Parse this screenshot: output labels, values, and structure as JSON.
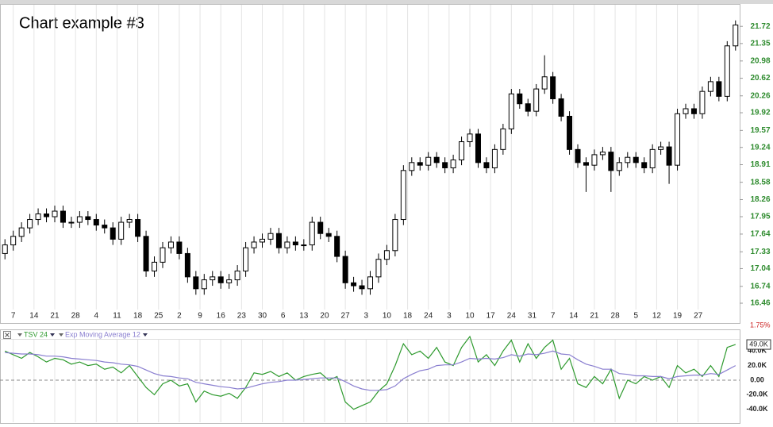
{
  "chart_data": [
    {
      "type": "candlestick",
      "title": "Chart example #3",
      "change_label": "1.75%",
      "x": [
        0,
        2,
        4,
        6,
        8,
        10,
        12,
        14,
        16,
        18,
        20,
        22,
        24,
        26,
        28,
        30,
        32,
        34,
        36,
        38,
        40,
        42,
        44,
        46,
        48,
        50,
        52,
        54,
        56,
        58,
        60,
        62,
        64,
        66,
        68,
        70,
        72,
        74,
        76,
        78,
        80,
        82,
        84,
        86,
        88,
        90,
        92,
        94,
        96,
        98,
        100,
        102,
        104,
        106,
        108,
        110,
        112,
        114,
        116,
        118,
        120,
        122,
        124,
        126,
        128,
        130,
        132,
        134,
        136,
        138,
        140,
        142,
        144,
        146,
        148,
        150,
        152,
        154,
        156,
        158,
        160,
        162,
        164,
        166,
        168,
        170,
        172,
        174,
        176
      ],
      "open": [
        17.3,
        17.45,
        17.6,
        17.75,
        17.9,
        18.0,
        17.95,
        18.05,
        17.85,
        17.85,
        17.95,
        17.9,
        17.8,
        17.75,
        17.55,
        17.85,
        17.9,
        17.6,
        17.0,
        17.15,
        17.4,
        17.5,
        17.3,
        16.9,
        16.7,
        16.85,
        16.9,
        16.8,
        16.85,
        17.0,
        17.4,
        17.5,
        17.55,
        17.65,
        17.4,
        17.5,
        17.45,
        17.45,
        17.85,
        17.65,
        17.6,
        17.25,
        16.8,
        16.75,
        16.7,
        16.9,
        17.2,
        17.35,
        17.9,
        18.8,
        18.95,
        18.9,
        19.05,
        18.95,
        18.85,
        19.0,
        19.35,
        19.5,
        18.95,
        18.85,
        19.2,
        19.6,
        20.3,
        20.1,
        19.95,
        20.4,
        20.65,
        20.2,
        19.85,
        19.2,
        18.95,
        18.9,
        19.1,
        19.15,
        18.8,
        18.95,
        19.05,
        18.95,
        18.85,
        19.2,
        19.25,
        18.9,
        19.9,
        20.0,
        19.9,
        20.35,
        20.55,
        20.25,
        21.3
      ],
      "high": [
        17.55,
        17.7,
        17.85,
        18.0,
        18.1,
        18.1,
        18.15,
        18.15,
        17.95,
        18.05,
        18.05,
        18.0,
        17.9,
        17.85,
        17.95,
        18.0,
        18.0,
        17.7,
        17.25,
        17.5,
        17.6,
        17.6,
        17.4,
        17.0,
        16.95,
        17.0,
        17.0,
        16.95,
        17.1,
        17.5,
        17.6,
        17.65,
        17.75,
        17.75,
        17.6,
        17.6,
        17.55,
        17.95,
        17.95,
        17.75,
        17.7,
        17.35,
        16.9,
        16.85,
        17.0,
        17.3,
        17.45,
        18.0,
        18.9,
        19.05,
        19.05,
        19.15,
        19.15,
        19.05,
        19.1,
        19.45,
        19.6,
        19.6,
        19.05,
        19.3,
        19.7,
        20.4,
        20.4,
        20.2,
        20.5,
        21.1,
        20.75,
        20.3,
        19.95,
        19.3,
        19.05,
        19.2,
        19.25,
        19.25,
        19.05,
        19.15,
        19.15,
        19.05,
        19.3,
        19.35,
        19.35,
        20.0,
        20.1,
        20.1,
        20.45,
        20.65,
        20.65,
        21.4,
        21.85
      ],
      "low": [
        17.2,
        17.35,
        17.5,
        17.65,
        17.8,
        17.85,
        17.85,
        17.75,
        17.75,
        17.75,
        17.8,
        17.7,
        17.65,
        17.45,
        17.45,
        17.75,
        17.5,
        16.9,
        16.9,
        17.05,
        17.3,
        17.2,
        16.8,
        16.6,
        16.6,
        16.75,
        16.7,
        16.7,
        16.75,
        16.9,
        17.3,
        17.4,
        17.45,
        17.3,
        17.3,
        17.35,
        17.35,
        17.35,
        17.55,
        17.5,
        17.15,
        16.7,
        16.65,
        16.6,
        16.6,
        16.8,
        17.1,
        17.25,
        17.8,
        18.7,
        18.8,
        18.8,
        18.85,
        18.75,
        18.75,
        18.9,
        19.25,
        18.85,
        18.75,
        18.75,
        19.1,
        19.5,
        20.0,
        19.85,
        19.85,
        20.3,
        20.1,
        19.75,
        19.1,
        18.85,
        18.4,
        18.8,
        19.0,
        18.4,
        18.7,
        18.85,
        18.85,
        18.75,
        18.75,
        19.1,
        18.55,
        18.8,
        19.8,
        19.8,
        19.8,
        20.25,
        20.15,
        20.15,
        21.2
      ],
      "close": [
        17.45,
        17.6,
        17.75,
        17.9,
        18.0,
        17.95,
        18.05,
        17.85,
        17.85,
        17.95,
        17.9,
        17.8,
        17.75,
        17.55,
        17.85,
        17.9,
        17.6,
        17.0,
        17.15,
        17.4,
        17.5,
        17.3,
        16.9,
        16.7,
        16.85,
        16.9,
        16.8,
        16.85,
        17.0,
        17.4,
        17.5,
        17.55,
        17.65,
        17.4,
        17.5,
        17.45,
        17.45,
        17.85,
        17.65,
        17.6,
        17.25,
        16.8,
        16.75,
        16.7,
        16.9,
        17.2,
        17.35,
        17.9,
        18.8,
        18.95,
        18.9,
        19.05,
        18.95,
        18.85,
        19.0,
        19.35,
        19.5,
        18.95,
        18.85,
        19.2,
        19.6,
        20.3,
        20.1,
        19.95,
        20.4,
        20.65,
        20.2,
        19.85,
        19.2,
        18.95,
        18.9,
        19.1,
        19.15,
        18.8,
        18.95,
        19.05,
        18.95,
        18.85,
        19.2,
        19.25,
        18.9,
        19.9,
        20.0,
        19.9,
        20.35,
        20.55,
        20.25,
        21.3,
        21.75
      ],
      "xlim": [
        -1,
        177
      ],
      "xticks": [
        {
          "value": 2,
          "label": "7"
        },
        {
          "value": 7,
          "label": "14"
        },
        {
          "value": 12,
          "label": "21"
        },
        {
          "value": 17,
          "label": "28"
        },
        {
          "value": 22,
          "label": "4"
        },
        {
          "value": 27,
          "label": "11"
        },
        {
          "value": 32,
          "label": "18"
        },
        {
          "value": 37,
          "label": "25"
        },
        {
          "value": 42,
          "label": "2"
        },
        {
          "value": 47,
          "label": "9"
        },
        {
          "value": 52,
          "label": "16"
        },
        {
          "value": 57,
          "label": "23"
        },
        {
          "value": 62,
          "label": "30"
        },
        {
          "value": 67,
          "label": "6"
        },
        {
          "value": 72,
          "label": "13"
        },
        {
          "value": 77,
          "label": "20"
        },
        {
          "value": 82,
          "label": "27"
        },
        {
          "value": 87,
          "label": "3"
        },
        {
          "value": 92,
          "label": "10"
        },
        {
          "value": 97,
          "label": "18"
        },
        {
          "value": 102,
          "label": "24"
        },
        {
          "value": 107,
          "label": "3"
        },
        {
          "value": 112,
          "label": "10"
        },
        {
          "value": 117,
          "label": "17"
        },
        {
          "value": 122,
          "label": "24"
        },
        {
          "value": 127,
          "label": "31"
        },
        {
          "value": 132,
          "label": "7"
        },
        {
          "value": 137,
          "label": "14"
        },
        {
          "value": 142,
          "label": "21"
        },
        {
          "value": 147,
          "label": "28"
        },
        {
          "value": 152,
          "label": "5"
        },
        {
          "value": 157,
          "label": "12"
        },
        {
          "value": 162,
          "label": "19"
        },
        {
          "value": 167,
          "label": "27"
        }
      ],
      "ylim": [
        16.33,
        22.16
      ],
      "yticks": [
        16.46,
        16.74,
        17.04,
        17.33,
        17.64,
        17.95,
        18.26,
        18.58,
        18.91,
        19.24,
        19.57,
        19.92,
        20.26,
        20.62,
        20.98,
        21.35,
        21.72
      ],
      "log_scale": true,
      "grid": "x",
      "up_color": "#ffffff",
      "down_color": "#000000",
      "tick_color": "#2e8b2e",
      "change_color": "#cc2222"
    },
    {
      "type": "line",
      "ylim": [
        -57800,
        55600
      ],
      "yticks": [
        {
          "value": 40000,
          "label": "40.0K"
        },
        {
          "value": 20000,
          "label": "20.0K"
        },
        {
          "value": 0,
          "label": "0.00"
        },
        {
          "value": -20000,
          "label": "-20.0K"
        },
        {
          "value": -40000,
          "label": "-40.0K"
        }
      ],
      "last_label": {
        "value": 49000,
        "label": "49.0K"
      },
      "series": [
        {
          "name": "TSV 24",
          "color": "#2e9a2e",
          "values": [
            40000,
            35000,
            30000,
            38000,
            32000,
            25000,
            30000,
            28000,
            22000,
            25000,
            20000,
            22000,
            15000,
            18000,
            10000,
            20000,
            5000,
            -10000,
            -20000,
            -5000,
            0,
            -8000,
            -5000,
            -30000,
            -15000,
            -20000,
            -22000,
            -18000,
            -25000,
            -10000,
            10000,
            8000,
            12000,
            5000,
            10000,
            0,
            5000,
            8000,
            10000,
            0,
            5000,
            -30000,
            -40000,
            -35000,
            -30000,
            -15000,
            -5000,
            20000,
            50000,
            35000,
            40000,
            30000,
            45000,
            25000,
            20000,
            45000,
            60000,
            25000,
            35000,
            20000,
            40000,
            55000,
            25000,
            50000,
            30000,
            45000,
            55000,
            15000,
            30000,
            -5000,
            -10000,
            5000,
            -5000,
            15000,
            -25000,
            0,
            -5000,
            5000,
            0,
            5000,
            -10000,
            20000,
            10000,
            15000,
            5000,
            20000,
            5000,
            45000,
            49000
          ]
        },
        {
          "name": "Exp Moving Average 12",
          "color": "#8a7fd0",
          "values": [
            38000,
            37000,
            36000,
            36000,
            35000,
            33000,
            33000,
            32000,
            30000,
            29000,
            28000,
            27000,
            25000,
            24000,
            22000,
            21000,
            19000,
            14000,
            9000,
            6000,
            5000,
            3000,
            2000,
            -3000,
            -5000,
            -7000,
            -9000,
            -10000,
            -12000,
            -11000,
            -8000,
            -5000,
            -3000,
            -2000,
            0,
            0,
            1000,
            2000,
            3000,
            3000,
            3000,
            -2000,
            -8000,
            -12000,
            -14000,
            -14000,
            -13000,
            -8000,
            2000,
            8000,
            13000,
            15000,
            20000,
            21000,
            21000,
            25000,
            30000,
            29000,
            30000,
            29000,
            31000,
            35000,
            33000,
            36000,
            35000,
            37000,
            40000,
            36000,
            35000,
            28000,
            22000,
            19000,
            15000,
            15000,
            9000,
            8000,
            6000,
            6000,
            5000,
            5000,
            2000,
            5000,
            6000,
            7000,
            7000,
            9000,
            8000,
            14000,
            20000
          ]
        }
      ]
    }
  ]
}
